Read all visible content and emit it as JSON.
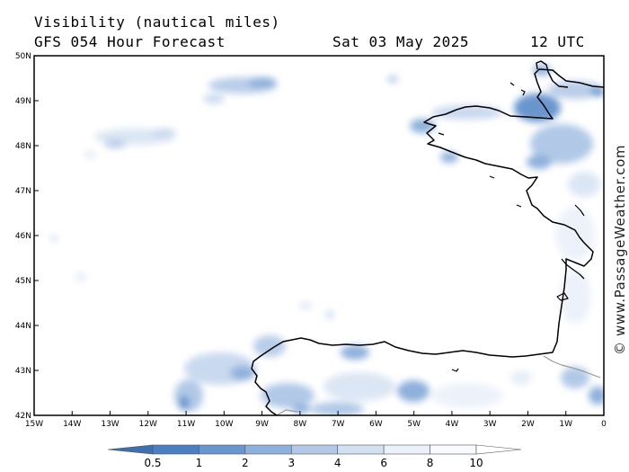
{
  "header": {
    "title": "Visibility (nautical miles)",
    "forecast": "GFS 054 Hour Forecast",
    "date": "Sat 03 May 2025",
    "time": "12 UTC"
  },
  "map": {
    "lon_min": -15,
    "lon_max": 0,
    "lat_min": 42,
    "lat_max": 50,
    "lat_labels": [
      "50N",
      "49N",
      "48N",
      "47N",
      "46N",
      "45N",
      "44N",
      "43N",
      "42N"
    ],
    "lon_labels": [
      "15W",
      "14W",
      "13W",
      "12W",
      "11W",
      "10W",
      "9W",
      "8W",
      "7W",
      "6W",
      "5W",
      "4W",
      "3W",
      "2W",
      "1W",
      "0"
    ],
    "coast_color": "#000000",
    "border_color": "#999999"
  },
  "colorbar": {
    "labels": [
      "0.5",
      "1",
      "2",
      "3",
      "4",
      "6",
      "8",
      "10"
    ],
    "colors": [
      "#3f6fae",
      "#4a7fc2",
      "#6a96cf",
      "#8eb0dc",
      "#b1c9e7",
      "#d2e0f1",
      "#ebf1f9",
      "#f8fafd",
      "#ffffff"
    ]
  },
  "watermark": "© www.PassageWeather.com"
}
